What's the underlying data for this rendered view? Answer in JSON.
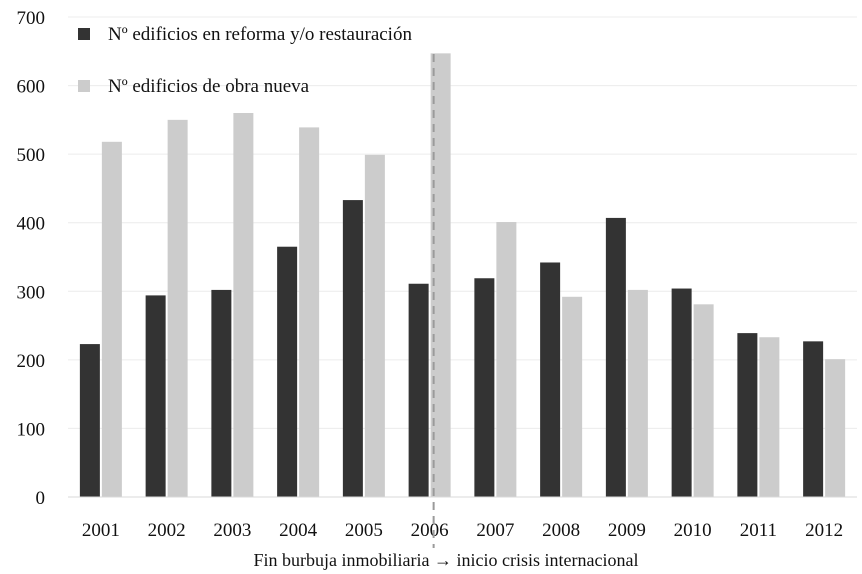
{
  "chart_data": {
    "type": "bar",
    "categories": [
      "2001",
      "2002",
      "2003",
      "2004",
      "2005",
      "2006",
      "2007",
      "2008",
      "2009",
      "2010",
      "2011",
      "2012"
    ],
    "series": [
      {
        "name": "Nº edificios en reforma y/o restauración",
        "color": "#333333",
        "values": [
          223,
          294,
          302,
          365,
          433,
          311,
          319,
          342,
          407,
          304,
          239,
          227
        ]
      },
      {
        "name": "Nº edificios de obra nueva",
        "color": "#cccccc",
        "values": [
          518,
          550,
          560,
          539,
          499,
          647,
          401,
          292,
          302,
          281,
          233,
          201
        ]
      }
    ],
    "ylim": [
      0,
      700
    ],
    "yticks": [
      0,
      100,
      200,
      300,
      400,
      500,
      600,
      700
    ],
    "grid": true,
    "legend_position": "top-left",
    "marker_after_category": "2006",
    "annotation": "Fin burbuja inmobiliaria → inicio crisis internacional"
  }
}
